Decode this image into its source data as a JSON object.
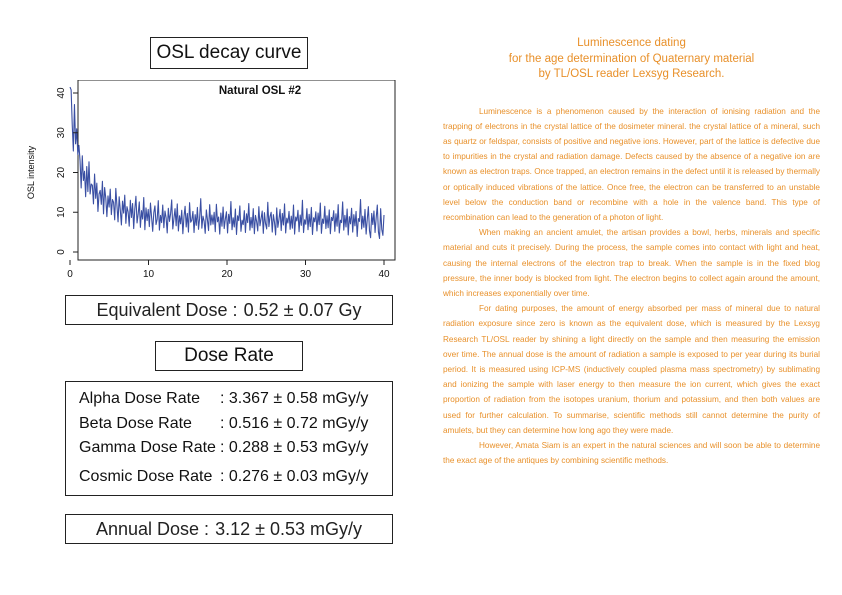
{
  "osl_panel": {
    "title": "OSL decay curve"
  },
  "chart_data": {
    "type": "line",
    "title": "Natural OSL #2",
    "xlabel": "",
    "ylabel": "OSL intensity",
    "xlim": [
      0,
      40
    ],
    "ylim": [
      0,
      42
    ],
    "x_ticks": [
      "0",
      "10",
      "20",
      "30",
      "40"
    ],
    "y_ticks": [
      "0",
      "10",
      "20",
      "30",
      "40"
    ],
    "grid": false,
    "legend": "none",
    "line_color": "#3a4fa3",
    "series": [
      {
        "values": [
          41.5,
          40.8,
          32.0,
          25.4,
          37.1,
          27.2,
          31.0,
          24.5,
          26.8,
          22.9,
          16.1,
          24.2,
          18.0,
          20.3,
          13.9,
          21.5,
          15.2,
          22.7,
          14.6,
          17.1,
          16.8,
          12.1,
          19.6,
          13.5,
          17.3,
          10.2,
          14.6,
          15.5,
          12.0,
          17.8,
          9.6,
          16.2,
          13.6,
          8.9,
          14.1,
          11.3,
          15.8,
          9.4,
          13.2,
          12.5,
          8.1,
          16.0,
          11.7,
          7.6,
          13.9,
          10.6,
          6.8,
          12.8,
          9.8,
          14.3,
          7.2,
          11.4,
          10.1,
          6.5,
          13.0,
          8.7,
          12.2,
          5.9,
          10.8,
          14.0,
          7.3,
          9.5,
          12.6,
          6.2,
          10.4,
          8.3,
          13.7,
          5.6,
          11.1,
          7.9,
          10.7,
          6.4,
          12.3,
          8.8,
          5.2,
          9.9,
          11.6,
          6.9,
          8.2,
          12.9,
          5.5,
          9.2,
          7.4,
          11.8,
          6.1,
          10.3,
          8.6,
          4.8,
          11.0,
          7.7,
          9.6,
          13.1,
          5.8,
          8.4,
          10.9,
          6.6,
          12.1,
          5.3,
          9.1,
          7.1,
          10.5,
          4.6,
          8.9,
          11.5,
          6.3,
          9.7,
          5.0,
          12.4,
          7.5,
          8.0,
          10.2,
          4.9,
          9.4,
          6.7,
          11.2,
          5.7,
          8.5,
          13.4,
          6.0,
          9.0,
          7.8,
          4.7,
          10.6,
          8.1,
          5.4,
          11.9,
          6.8,
          9.3,
          7.0,
          10.0,
          5.1,
          12.0,
          7.6,
          8.8,
          4.5,
          9.8,
          6.5,
          11.3,
          5.9,
          8.3,
          10.1,
          4.8,
          9.5,
          7.2,
          12.7,
          5.6,
          8.6,
          6.3,
          10.8,
          4.4,
          9.1,
          7.9,
          11.6,
          5.2,
          8.0,
          6.9,
          10.4,
          4.9,
          9.6,
          7.4,
          12.2,
          5.5,
          8.7,
          6.1,
          10.9,
          4.6,
          9.2,
          7.7,
          5.3,
          11.4,
          6.6,
          8.4,
          10.3,
          4.7,
          9.9,
          7.1,
          5.8,
          12.5,
          6.4,
          8.9,
          10.0,
          5.0,
          9.4,
          7.5,
          4.3,
          11.1,
          6.2,
          8.2,
          10.7,
          5.4,
          9.7,
          6.8,
          12.1,
          4.8,
          8.5,
          7.3,
          10.2,
          5.7,
          9.0,
          6.0,
          11.8,
          4.5,
          8.8,
          7.8,
          10.5,
          5.1,
          9.3,
          6.7,
          13.0,
          4.9,
          8.1,
          7.0,
          10.9,
          5.6,
          9.5,
          6.4,
          11.2,
          4.4,
          8.6,
          7.6,
          10.1,
          5.3,
          9.8,
          6.9,
          12.3,
          4.7,
          8.3,
          7.2,
          11.5,
          5.9,
          9.1,
          6.1,
          10.6,
          4.6,
          8.7,
          7.9,
          10.4,
          5.2,
          9.6,
          6.5,
          11.9,
          4.8,
          8.0,
          7.4,
          12.6,
          5.5,
          9.2,
          6.3,
          10.8,
          4.3,
          8.9,
          7.1,
          11.0,
          5.0,
          9.4,
          6.6,
          10.2,
          3.9,
          8.4,
          7.7,
          13.2,
          5.8,
          9.0,
          6.2,
          10.7,
          4.5,
          8.2,
          11.4,
          5.4,
          3.6,
          9.7,
          6.9,
          10.3,
          4.9,
          8.6,
          11.8,
          5.1,
          3.4,
          10.9,
          5.7,
          4.2,
          9.3
        ]
      }
    ]
  },
  "equivalent_dose": {
    "label": "Equivalent Dose :",
    "value": "0.52 ± 0.07 Gy"
  },
  "dose_rate": {
    "title": "Dose Rate",
    "rows": [
      {
        "label": "Alpha Dose Rate",
        "value": ": 3.367 ± 0.58 mGy/y"
      },
      {
        "label": "Beta Dose Rate",
        "value": ": 0.516 ± 0.72 mGy/y"
      },
      {
        "label": "Gamma Dose Rate",
        "value": ": 0.288 ± 0.53 mGy/y"
      },
      {
        "label": "Cosmic Dose Rate",
        "value": ": 0.276 ± 0.03 mGy/y"
      }
    ]
  },
  "annual_dose": {
    "label": "Annual Dose :",
    "value": "3.12 ± 0.53 mGy/y"
  },
  "article": {
    "heading": [
      "Luminescence dating",
      "for the age determination of Quaternary material",
      "by TL/OSL reader Lexsyg Research."
    ],
    "text_color": "#e8902a",
    "paragraphs": [
      "Luminescence is a phenomenon caused by the interaction of ionising radiation and the trapping of electrons in the crystal lattice of the dosimeter mineral. the crystal lattice of a mineral, such as quartz or feldspar, consists of positive and negative ions. However, part of the lattice is defective due to impurities in the crystal and radiation damage. Defects caused by the absence of a negative ion are known as electron traps. Once trapped, an electron remains in the defect until it is released by thermally or optically induced vibrations of the lattice. Once free, the electron can be transferred to an unstable level below the conduction band or recombine with a hole in the valence band. This type of recombination can lead to the generation of a photon of light.",
      "When making an ancient amulet, the artisan provides a bowl, herbs, minerals and specific material and cuts it precisely. During the process, the sample comes into contact with light and heat, causing the internal electrons of the electron trap to break. When the sample is in the fixed blog pressure, the inner body is blocked from light. The electron begins to collect again around the amount, which increases exponentially over time.",
      "For dating purposes, the amount of energy absorbed per mass of mineral due to natural radiation exposure since zero is known as the equivalent dose, which is measured by the Lexsyg Research TL/OSL reader by shining a light directly on the sample and then measuring the emission over time. The annual dose is the amount of radiation a sample is exposed to per year during its burial period. It is measured using ICP-MS (inductively coupled plasma mass spectrometry) by sublimating and ionizing the sample with laser energy to then measure the ion current, which gives the exact proportion of radiation from the isotopes uranium, thorium and potassium, and then both values are used for further calculation. To summarise, scientific methods still cannot determine the purity of amulets, but they can determine how long ago they were made.",
      "However, Amata Siam is an expert in the natural sciences and will soon be able to determine the exact age of the antiques by combining scientific methods."
    ]
  }
}
